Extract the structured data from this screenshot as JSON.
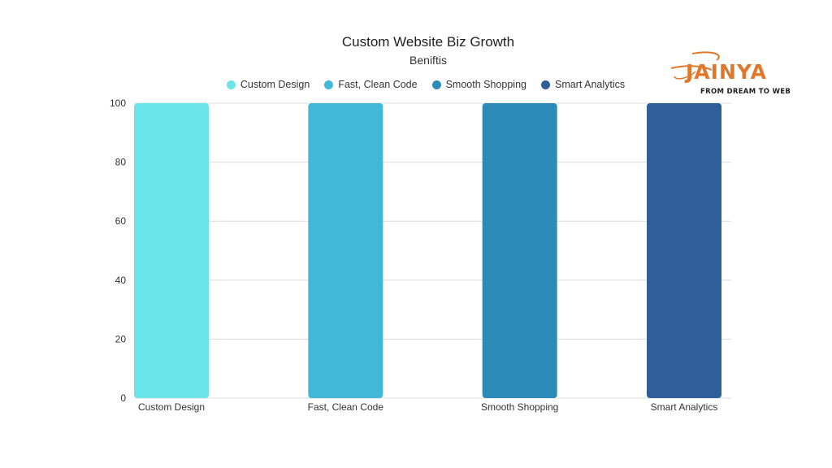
{
  "chart_data": {
    "type": "bar",
    "title": "Custom Website Biz Growth",
    "subtitle": "Beniftis",
    "categories": [
      "Custom Design",
      "Fast, Clean Code",
      "Smooth Shopping",
      "Smart Analytics"
    ],
    "values": [
      100,
      100,
      100,
      100
    ],
    "colors": [
      "#6ce5e8",
      "#41b8d5",
      "#2d8bba",
      "#2f5f98"
    ],
    "legend": {
      "position": "top-center",
      "entries": [
        "Custom Design",
        "Fast, Clean Code",
        "Smooth Shopping",
        "Smart Analytics"
      ]
    },
    "ylim": [
      0,
      100
    ],
    "yticks": [
      "0",
      "20",
      "40",
      "60",
      "80",
      "100"
    ],
    "grid": true,
    "xlabel": "",
    "ylabel": ""
  },
  "logo": {
    "name": "JAINYA",
    "tagline": "FROM DREAM TO WEB",
    "color": "#e0782b"
  }
}
